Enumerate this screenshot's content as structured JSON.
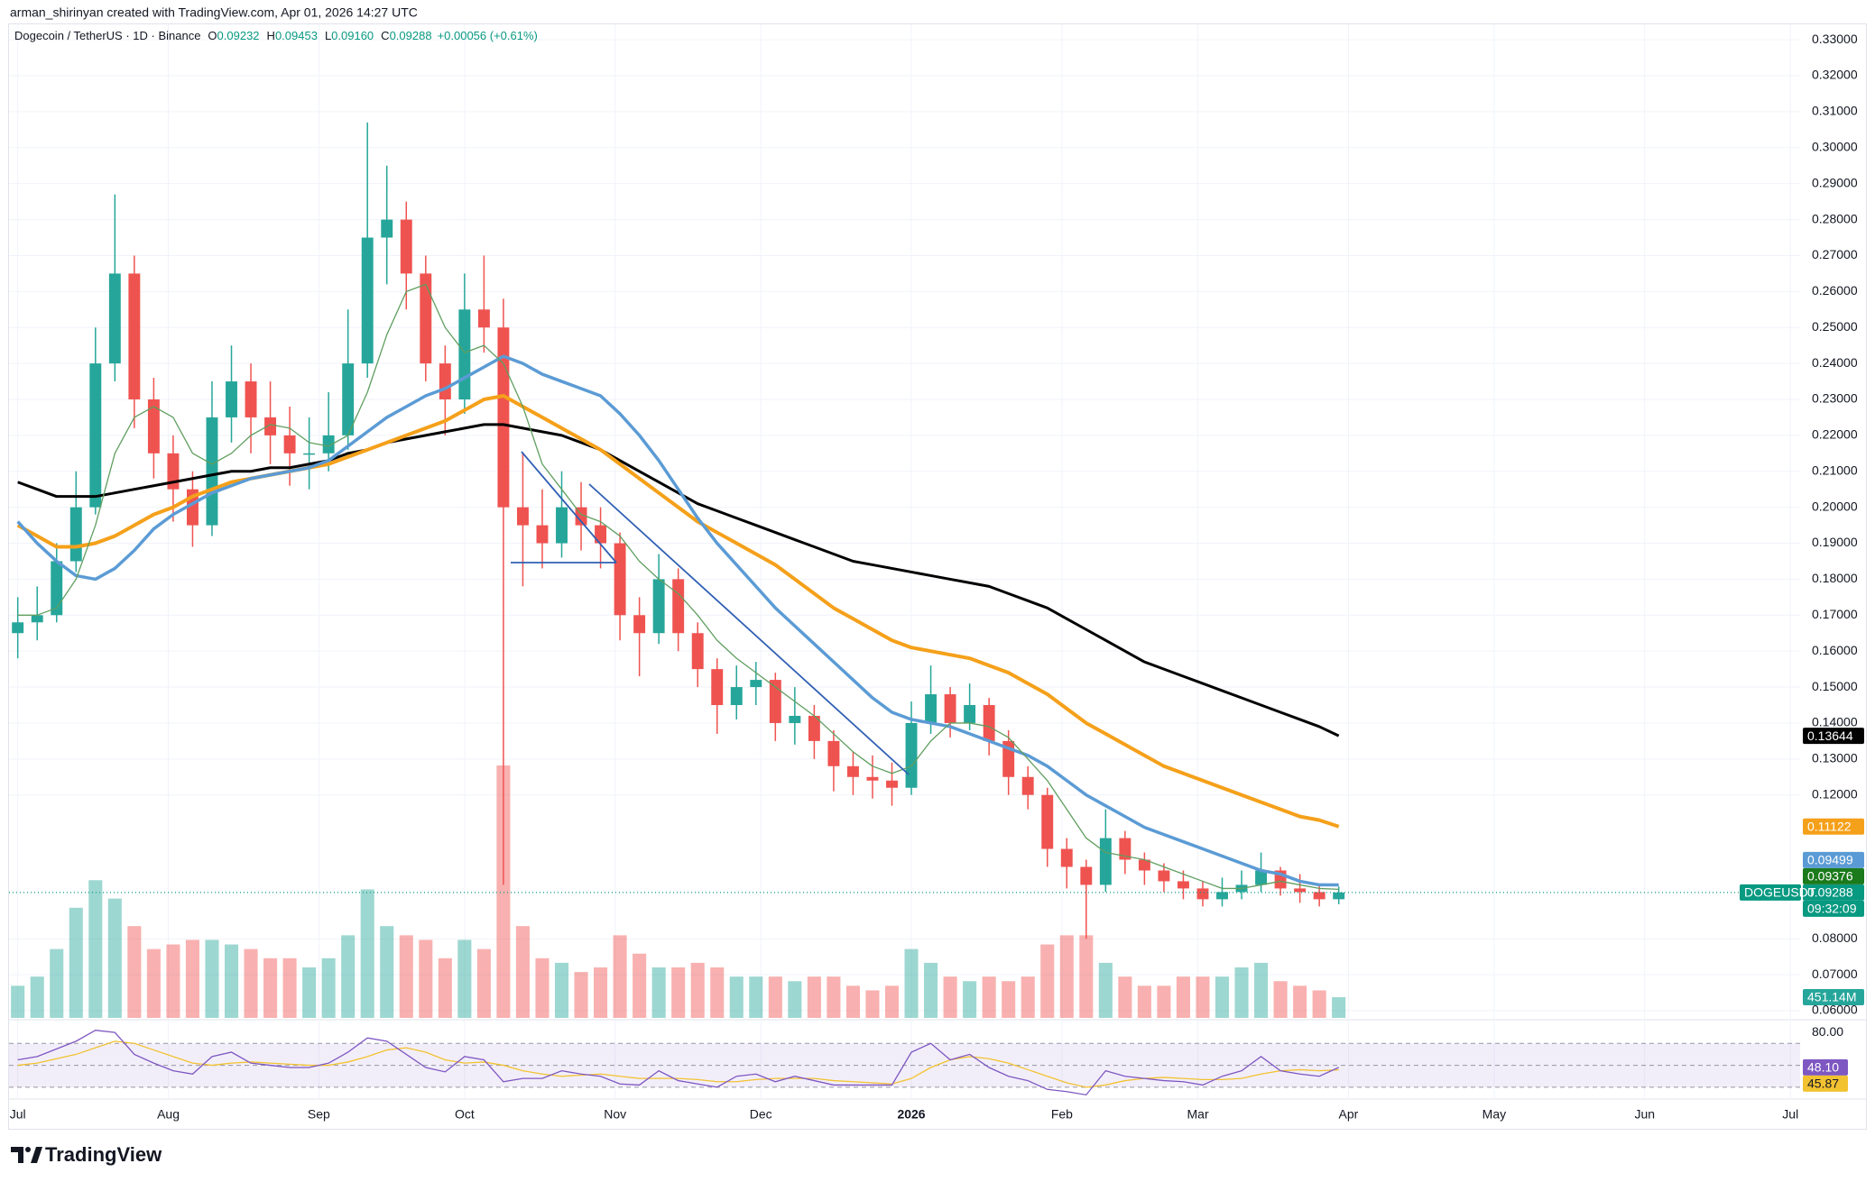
{
  "header": {
    "credit": "arman_shirinyan created with TradingView.com, Apr 01, 2026 14:27 UTC"
  },
  "chart_data": {
    "type": "candlestick",
    "title": "Dogecoin / TetherUS · 1D · Binance",
    "legend_values": [
      {
        "key": "O",
        "text": "0.09232"
      },
      {
        "key": "H",
        "text": "0.09453"
      },
      {
        "key": "L",
        "text": "0.09160"
      },
      {
        "key": "C",
        "text": "0.09288"
      }
    ],
    "change": "+0.00056 (+0.61%)",
    "xlim": [
      -0.45,
      91.75
    ],
    "xticks": [
      {
        "value": 0,
        "label": "Jul"
      },
      {
        "value": 7.75,
        "label": "Aug"
      },
      {
        "value": 15.5,
        "label": "Sep"
      },
      {
        "value": 23,
        "label": "Oct"
      },
      {
        "value": 30.75,
        "label": "Nov"
      },
      {
        "value": 38.25,
        "label": "Dec"
      },
      {
        "value": 46,
        "label": "2026"
      },
      {
        "value": 53.75,
        "label": "Feb"
      },
      {
        "value": 60.75,
        "label": "Mar"
      },
      {
        "value": 68.5,
        "label": "Apr"
      },
      {
        "value": 76,
        "label": "May"
      },
      {
        "value": 83.75,
        "label": "Jun"
      },
      {
        "value": 91.25,
        "label": "Jul"
      }
    ],
    "ylim": [
      0.058,
      0.3343
    ],
    "yticks": [
      {
        "value": 0.33,
        "label": "0.33000"
      },
      {
        "value": 0.32,
        "label": "0.32000"
      },
      {
        "value": 0.31,
        "label": "0.31000"
      },
      {
        "value": 0.3,
        "label": "0.30000"
      },
      {
        "value": 0.29,
        "label": "0.29000"
      },
      {
        "value": 0.28,
        "label": "0.28000"
      },
      {
        "value": 0.27,
        "label": "0.27000"
      },
      {
        "value": 0.26,
        "label": "0.26000"
      },
      {
        "value": 0.25,
        "label": "0.25000"
      },
      {
        "value": 0.24,
        "label": "0.24000"
      },
      {
        "value": 0.23,
        "label": "0.23000"
      },
      {
        "value": 0.22,
        "label": "0.22000"
      },
      {
        "value": 0.21,
        "label": "0.21000"
      },
      {
        "value": 0.2,
        "label": "0.20000"
      },
      {
        "value": 0.19,
        "label": "0.19000"
      },
      {
        "value": 0.18,
        "label": "0.18000"
      },
      {
        "value": 0.17,
        "label": "0.17000"
      },
      {
        "value": 0.16,
        "label": "0.16000"
      },
      {
        "value": 0.15,
        "label": "0.15000"
      },
      {
        "value": 0.14,
        "label": "0.14000"
      },
      {
        "value": 0.13,
        "label": "0.13000"
      },
      {
        "value": 0.12,
        "label": "0.12000"
      },
      {
        "value": 0.08,
        "label": "0.08000"
      },
      {
        "value": 0.07,
        "label": "0.07000"
      },
      {
        "value": 0.06,
        "label": "0.06000"
      }
    ],
    "grid": true,
    "up_color": "#26a69a",
    "down_color": "#ef5350",
    "open": [
      0.165,
      0.168,
      0.17,
      0.185,
      0.2,
      0.24,
      0.265,
      0.23,
      0.215,
      0.205,
      0.195,
      0.225,
      0.235,
      0.225,
      0.22,
      0.215,
      0.215,
      0.22,
      0.24,
      0.275,
      0.28,
      0.265,
      0.24,
      0.23,
      0.255,
      0.25,
      0.2,
      0.195,
      0.19,
      0.2,
      0.195,
      0.19,
      0.17,
      0.165,
      0.18,
      0.165,
      0.155,
      0.145,
      0.15,
      0.152,
      0.14,
      0.142,
      0.135,
      0.128,
      0.125,
      0.124,
      0.122,
      0.14,
      0.148,
      0.14,
      0.145,
      0.135,
      0.125,
      0.12,
      0.105,
      0.1,
      0.095,
      0.108,
      0.102,
      0.099,
      0.096,
      0.094,
      0.091,
      0.093,
      0.095,
      0.099,
      0.094,
      0.093,
      0.091
    ],
    "high": [
      0.175,
      0.178,
      0.19,
      0.21,
      0.25,
      0.287,
      0.27,
      0.236,
      0.22,
      0.21,
      0.235,
      0.245,
      0.24,
      0.235,
      0.228,
      0.225,
      0.232,
      0.255,
      0.307,
      0.295,
      0.285,
      0.27,
      0.245,
      0.265,
      0.27,
      0.258,
      0.215,
      0.205,
      0.21,
      0.207,
      0.2,
      0.193,
      0.175,
      0.187,
      0.183,
      0.168,
      0.158,
      0.156,
      0.157,
      0.154,
      0.15,
      0.145,
      0.138,
      0.132,
      0.131,
      0.129,
      0.146,
      0.156,
      0.15,
      0.151,
      0.147,
      0.138,
      0.128,
      0.122,
      0.108,
      0.102,
      0.116,
      0.11,
      0.104,
      0.101,
      0.099,
      0.096,
      0.097,
      0.099,
      0.104,
      0.1,
      0.098,
      0.095,
      0.09453
    ],
    "low": [
      0.158,
      0.163,
      0.168,
      0.182,
      0.198,
      0.235,
      0.222,
      0.208,
      0.196,
      0.189,
      0.192,
      0.218,
      0.215,
      0.212,
      0.206,
      0.205,
      0.21,
      0.216,
      0.236,
      0.262,
      0.255,
      0.235,
      0.22,
      0.226,
      0.243,
      0.095,
      0.178,
      0.183,
      0.186,
      0.188,
      0.183,
      0.163,
      0.153,
      0.162,
      0.16,
      0.15,
      0.137,
      0.141,
      0.145,
      0.135,
      0.134,
      0.13,
      0.121,
      0.12,
      0.119,
      0.117,
      0.12,
      0.137,
      0.136,
      0.138,
      0.131,
      0.12,
      0.116,
      0.1,
      0.094,
      0.08,
      0.093,
      0.098,
      0.095,
      0.093,
      0.091,
      0.089,
      0.089,
      0.091,
      0.093,
      0.092,
      0.09,
      0.089,
      0.0896
    ],
    "close": [
      0.168,
      0.17,
      0.185,
      0.2,
      0.24,
      0.265,
      0.23,
      0.215,
      0.205,
      0.195,
      0.225,
      0.235,
      0.225,
      0.22,
      0.215,
      0.215,
      0.22,
      0.24,
      0.275,
      0.28,
      0.265,
      0.24,
      0.23,
      0.255,
      0.25,
      0.2,
      0.195,
      0.19,
      0.2,
      0.195,
      0.19,
      0.17,
      0.165,
      0.18,
      0.165,
      0.155,
      0.145,
      0.15,
      0.152,
      0.14,
      0.142,
      0.135,
      0.128,
      0.125,
      0.124,
      0.122,
      0.14,
      0.148,
      0.14,
      0.145,
      0.135,
      0.125,
      0.12,
      0.105,
      0.1,
      0.095,
      0.108,
      0.102,
      0.099,
      0.096,
      0.094,
      0.091,
      0.093,
      0.095,
      0.099,
      0.094,
      0.093,
      0.091,
      0.09288
    ],
    "volume": {
      "values": [
        700,
        900,
        1500,
        2400,
        3000,
        2600,
        2000,
        1500,
        1600,
        1700,
        1700,
        1600,
        1500,
        1300,
        1300,
        1100,
        1300,
        1800,
        2800,
        2000,
        1800,
        1700,
        1300,
        1700,
        1500,
        5500,
        2000,
        1300,
        1200,
        1000,
        1100,
        1800,
        1400,
        1100,
        1100,
        1200,
        1100,
        900,
        900,
        900,
        800,
        900,
        900,
        700,
        600,
        700,
        1500,
        1200,
        900,
        800,
        900,
        800,
        900,
        1600,
        1800,
        1800,
        1200,
        900,
        700,
        700,
        900,
        900,
        900,
        1100,
        1200,
        800,
        700,
        600,
        451.14
      ],
      "tag_label": "451.14M"
    },
    "series": [
      {
        "color": "#000000",
        "width": 3,
        "values": [
          0.207,
          0.205,
          0.203,
          0.203,
          0.203,
          0.204,
          0.205,
          0.206,
          0.207,
          0.208,
          0.209,
          0.21,
          0.21,
          0.211,
          0.211,
          0.212,
          0.213,
          0.215,
          0.216,
          0.218,
          0.219,
          0.22,
          0.221,
          0.222,
          0.223,
          0.223,
          0.222,
          0.221,
          0.22,
          0.218,
          0.216,
          0.213,
          0.21,
          0.207,
          0.204,
          0.201,
          0.199,
          0.197,
          0.195,
          0.193,
          0.191,
          0.189,
          0.187,
          0.185,
          0.184,
          0.183,
          0.182,
          0.181,
          0.18,
          0.179,
          0.178,
          0.176,
          0.174,
          0.172,
          0.169,
          0.166,
          0.163,
          0.16,
          0.157,
          0.155,
          0.153,
          0.151,
          0.149,
          0.147,
          0.145,
          0.143,
          0.141,
          0.139,
          0.13644
        ]
      },
      {
        "color": "#f5a01a",
        "width": 4,
        "values": [
          0.195,
          0.192,
          0.189,
          0.189,
          0.19,
          0.192,
          0.195,
          0.198,
          0.2,
          0.203,
          0.205,
          0.207,
          0.208,
          0.209,
          0.21,
          0.211,
          0.212,
          0.214,
          0.216,
          0.218,
          0.22,
          0.222,
          0.224,
          0.227,
          0.23,
          0.231,
          0.228,
          0.225,
          0.222,
          0.219,
          0.216,
          0.212,
          0.208,
          0.204,
          0.2,
          0.196,
          0.193,
          0.19,
          0.187,
          0.184,
          0.18,
          0.176,
          0.172,
          0.169,
          0.166,
          0.163,
          0.161,
          0.16,
          0.159,
          0.158,
          0.156,
          0.154,
          0.151,
          0.148,
          0.144,
          0.14,
          0.137,
          0.134,
          0.131,
          0.128,
          0.126,
          0.124,
          0.122,
          0.12,
          0.118,
          0.116,
          0.114,
          0.113,
          0.11122
        ]
      },
      {
        "color": "#5b9bd5",
        "width": 3.5,
        "values": [
          0.196,
          0.19,
          0.185,
          0.181,
          0.18,
          0.183,
          0.188,
          0.194,
          0.198,
          0.201,
          0.204,
          0.206,
          0.208,
          0.209,
          0.21,
          0.211,
          0.213,
          0.217,
          0.221,
          0.225,
          0.228,
          0.231,
          0.233,
          0.236,
          0.239,
          0.242,
          0.24,
          0.237,
          0.235,
          0.233,
          0.231,
          0.226,
          0.22,
          0.213,
          0.205,
          0.197,
          0.19,
          0.184,
          0.178,
          0.172,
          0.167,
          0.162,
          0.157,
          0.152,
          0.147,
          0.143,
          0.141,
          0.14,
          0.139,
          0.137,
          0.135,
          0.133,
          0.131,
          0.128,
          0.124,
          0.12,
          0.117,
          0.114,
          0.111,
          0.109,
          0.107,
          0.105,
          0.103,
          0.101,
          0.099,
          0.098,
          0.096,
          0.095,
          0.09499
        ]
      },
      {
        "color": "#5f9e5f",
        "width": 1.3,
        "values": [
          0.17,
          0.17,
          0.172,
          0.18,
          0.195,
          0.215,
          0.225,
          0.228,
          0.225,
          0.215,
          0.212,
          0.215,
          0.22,
          0.223,
          0.222,
          0.218,
          0.217,
          0.22,
          0.232,
          0.248,
          0.26,
          0.262,
          0.25,
          0.243,
          0.245,
          0.24,
          0.228,
          0.212,
          0.205,
          0.198,
          0.196,
          0.192,
          0.185,
          0.18,
          0.176,
          0.17,
          0.163,
          0.158,
          0.154,
          0.15,
          0.146,
          0.142,
          0.137,
          0.132,
          0.128,
          0.126,
          0.128,
          0.135,
          0.14,
          0.14,
          0.139,
          0.136,
          0.13,
          0.124,
          0.116,
          0.108,
          0.104,
          0.103,
          0.102,
          0.1,
          0.098,
          0.096,
          0.094,
          0.094,
          0.095,
          0.096,
          0.095,
          0.094,
          0.09376
        ]
      }
    ],
    "tag_colors": [
      "#000000",
      "#f5a01a",
      "#5b9bd5",
      "#1b7a1b"
    ],
    "last_price_tag": {
      "symbol": "DOGEUSDT",
      "countdown": "09:32:09",
      "color": "#089981"
    },
    "rsi": {
      "ylim": [
        20,
        90
      ],
      "yticks": [
        {
          "value": 80,
          "label": "80.00"
        }
      ],
      "bands": [
        70,
        50,
        30
      ],
      "color": "#7e57c2",
      "values": [
        55,
        58,
        65,
        72,
        82,
        80,
        60,
        52,
        45,
        42,
        58,
        62,
        52,
        50,
        48,
        48,
        52,
        62,
        75,
        72,
        60,
        48,
        44,
        58,
        55,
        35,
        38,
        38,
        45,
        42,
        40,
        33,
        32,
        45,
        36,
        33,
        30,
        40,
        42,
        35,
        40,
        36,
        32,
        32,
        32,
        32,
        62,
        70,
        55,
        60,
        48,
        40,
        36,
        28,
        26,
        23,
        45,
        40,
        38,
        36,
        35,
        32,
        40,
        45,
        58,
        45,
        42,
        40,
        48.1
      ],
      "tag_label": "48.10",
      "ma": {
        "color": "#f2c230",
        "values": [
          50,
          52,
          56,
          60,
          66,
          72,
          70,
          64,
          58,
          52,
          50,
          52,
          53,
          52,
          51,
          50,
          50,
          53,
          58,
          64,
          66,
          62,
          55,
          52,
          53,
          50,
          45,
          42,
          40,
          41,
          42,
          40,
          38,
          38,
          38,
          37,
          35,
          35,
          37,
          38,
          38,
          38,
          36,
          35,
          34,
          33,
          38,
          48,
          55,
          58,
          56,
          52,
          46,
          40,
          34,
          30,
          32,
          36,
          38,
          39,
          38,
          37,
          37,
          38,
          42,
          45,
          46,
          45,
          45.87
        ]
      }
    }
  },
  "brand": "TradingView"
}
